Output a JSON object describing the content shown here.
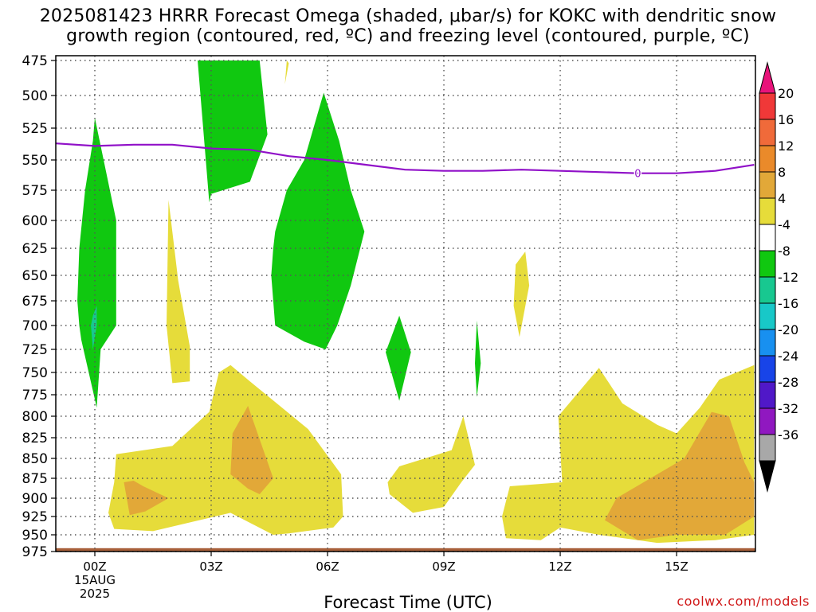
{
  "title": {
    "line1": "2025081423 HRRR Forecast Omega (shaded, μbar/s) for KOKC with dendritic snow",
    "line2": "growth region (contoured, red, ºC) and freezing level (contoured, purple, ºC)"
  },
  "credit": "coolwx.com/models",
  "chart_data": {
    "type": "heatmap",
    "title": "2025081423 HRRR Forecast Omega (shaded, μbar/s) for KOKC with dendritic snow growth region (contoured, red, ºC) and freezing level (contoured, purple, ºC)",
    "xlabel": "Forecast Time (UTC)",
    "ylabel": "",
    "xlim": [
      -1,
      17
    ],
    "ylim": [
      475,
      975
    ],
    "y_scale": "pressure (inverted)",
    "grid": true,
    "x_ticks": [
      {
        "value": 0,
        "label": "00Z",
        "sub": [
          "15AUG",
          "2025"
        ]
      },
      {
        "value": 3,
        "label": "03Z"
      },
      {
        "value": 6,
        "label": "06Z"
      },
      {
        "value": 9,
        "label": "09Z"
      },
      {
        "value": 12,
        "label": "12Z"
      },
      {
        "value": 15,
        "label": "15Z"
      }
    ],
    "y_ticks": [
      475,
      500,
      525,
      550,
      575,
      600,
      625,
      650,
      675,
      700,
      725,
      750,
      775,
      800,
      825,
      850,
      875,
      900,
      925,
      950,
      975
    ],
    "colorbar": {
      "labels": [
        "20",
        "16",
        "12",
        "8",
        "4",
        "-4",
        "-8",
        "-12",
        "-16",
        "-20",
        "-24",
        "-28",
        "-32",
        "-36"
      ],
      "colors": [
        "#e8137a",
        "#f03838",
        "#f06a3a",
        "#ea8a2a",
        "#e2a838",
        "#e6dc3a",
        "#ffffff",
        "#10c810",
        "#18c890",
        "#18c8c8",
        "#1890f0",
        "#1844e8",
        "#5018c8",
        "#9018c0",
        "#a8a8a8",
        "#000000"
      ]
    },
    "freezing_level": {
      "label": "0",
      "color": "#9010c8",
      "x": [
        -1,
        0,
        1,
        2,
        3,
        4,
        5,
        6,
        7,
        8,
        9,
        10,
        11,
        12,
        13,
        14,
        15,
        16,
        17
      ],
      "y": [
        537,
        539,
        538,
        538,
        541,
        542,
        547,
        550,
        554,
        558,
        559,
        559,
        558,
        559,
        560,
        561,
        561,
        559,
        554
      ]
    },
    "omega_shaded": {
      "colors": {
        "up_weak": "#10c810",
        "up_mod": "#18c890",
        "down_weak": "#e6dc3a",
        "down_mod": "#e2a838"
      },
      "regions": [
        {
          "level": "-8 to -4",
          "x": [
            0,
            0.55,
            0.55,
            0.15,
            0.05,
            -0.35,
            -0.4,
            -0.45,
            -0.4,
            -0.25,
            -0.05,
            0
          ],
          "y": [
            517,
            600,
            700,
            725,
            790,
            715,
            700,
            675,
            625,
            575,
            535,
            517
          ]
        },
        {
          "level": "-12 to -8",
          "x": [
            -0.05,
            0.05,
            0.05,
            -0.05,
            -0.1,
            -0.05
          ],
          "y": [
            690,
            680,
            700,
            725,
            700,
            690
          ]
        },
        {
          "level": "-8 to -4",
          "x": [
            2.65,
            3.0,
            3.7,
            4.25,
            4.45,
            4.0,
            3.0,
            2.95,
            2.65
          ],
          "y": [
            475,
            475,
            475,
            475,
            530,
            568,
            578,
            585,
            475
          ]
        },
        {
          "level": "-8 to -4",
          "x": [
            5.9,
            6.3,
            6.6,
            6.95,
            6.6,
            6.25,
            5.95,
            5.4,
            4.65,
            4.55,
            4.6,
            4.65,
            4.95,
            5.4,
            5.9
          ],
          "y": [
            498,
            535,
            575,
            610,
            660,
            700,
            725,
            717,
            700,
            650,
            625,
            610,
            575,
            550,
            498
          ]
        },
        {
          "level": "-8 to -4",
          "x": [
            7.85,
            8.15,
            7.85,
            7.5,
            7.85
          ],
          "y": [
            690,
            728,
            782,
            728,
            690
          ]
        },
        {
          "level": "-8 to -4",
          "x": [
            9.85,
            9.95,
            9.85,
            9.8,
            9.85
          ],
          "y": [
            695,
            740,
            778,
            740,
            695
          ]
        },
        {
          "level": "4 to 8",
          "x": [
            1.9,
            2.15,
            2.45,
            2.45,
            2.0,
            1.85,
            1.9
          ],
          "y": [
            583,
            655,
            722,
            760,
            762,
            700,
            583
          ]
        },
        {
          "level": "4 to 8",
          "x": [
            4.95,
            5.0,
            4.9,
            4.95
          ],
          "y": [
            475,
            477,
            492,
            475
          ]
        },
        {
          "level": "4 to 8",
          "x": [
            11.1,
            11.2,
            10.95,
            10.8,
            10.85,
            11.1
          ],
          "y": [
            628,
            660,
            712,
            680,
            640,
            628
          ]
        },
        {
          "level": "4 to 8",
          "x": [
            0.55,
            2.0,
            2.95,
            3.2,
            3.5,
            4.0,
            5.5,
            6.35,
            6.4,
            6.15,
            5.0,
            4.6,
            3.5,
            1.5,
            0.5,
            0.35,
            0.5,
            0.55
          ],
          "y": [
            845,
            835,
            795,
            750,
            742,
            760,
            815,
            870,
            925,
            940,
            948,
            950,
            920,
            945,
            942,
            920,
            880,
            845
          ]
        },
        {
          "level": "4 to 8",
          "x": [
            7.85,
            9.2,
            9.5,
            9.8,
            9.45,
            9.0,
            8.2,
            7.6,
            7.55,
            7.85
          ],
          "y": [
            860,
            840,
            800,
            858,
            880,
            912,
            920,
            895,
            880,
            860
          ]
        },
        {
          "level": "4 to 8",
          "x": [
            11.95,
            13.0,
            13.6,
            14.5,
            15.0,
            15.6,
            16.1,
            17.0,
            17.0,
            16.0,
            14.5,
            13.0,
            12.0,
            11.5,
            10.6,
            10.5,
            10.7,
            12.05,
            11.95
          ],
          "y": [
            800,
            745,
            785,
            810,
            820,
            790,
            758,
            742,
            950,
            958,
            962,
            950,
            940,
            958,
            955,
            925,
            885,
            880,
            800
          ]
        },
        {
          "level": "8 to 12",
          "x": [
            0.75,
            1.0,
            1.25,
            1.9,
            1.3,
            0.9,
            0.75
          ],
          "y": [
            880,
            878,
            885,
            900,
            918,
            923,
            880
          ]
        },
        {
          "level": "8 to 12",
          "x": [
            3.95,
            4.6,
            4.25,
            3.95,
            3.5,
            3.55,
            3.95
          ],
          "y": [
            788,
            875,
            895,
            888,
            870,
            820,
            788
          ]
        },
        {
          "level": "8 to 12",
          "x": [
            15.9,
            16.35,
            16.75,
            17.0,
            17.0,
            16.25,
            15.0,
            14.0,
            13.15,
            13.45,
            14.5,
            15.2,
            15.9
          ],
          "y": [
            795,
            800,
            855,
            880,
            925,
            950,
            950,
            958,
            930,
            900,
            870,
            850,
            795
          ]
        }
      ]
    },
    "ground": {
      "color": "#a8603a",
      "level": 970
    }
  },
  "x_axis_label": "Forecast Time (UTC)"
}
